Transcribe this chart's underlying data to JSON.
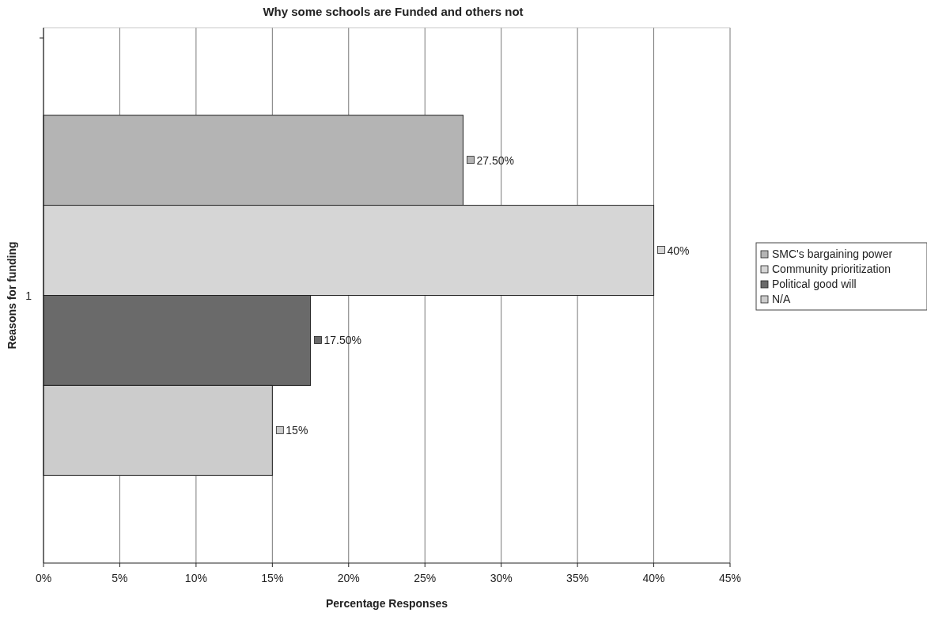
{
  "chart_data": {
    "type": "bar",
    "orientation": "horizontal",
    "title": "Why some schools are Funded and others not",
    "xlabel": "Percentage Responses",
    "ylabel": "Reasons for funding",
    "categories": [
      "1"
    ],
    "series": [
      {
        "name": "SMC's bargaining power",
        "color": "#b4b4b4",
        "values": [
          27.5
        ],
        "value_labels": [
          "27.50%"
        ]
      },
      {
        "name": "Community prioritization",
        "color": "#d6d6d6",
        "values": [
          40
        ],
        "value_labels": [
          "40%"
        ]
      },
      {
        "name": "Political good will",
        "color": "#6a6a6a",
        "values": [
          17.5
        ],
        "value_labels": [
          "17.50%"
        ]
      },
      {
        "name": "N/A",
        "color": "#cccccc",
        "values": [
          15
        ],
        "value_labels": [
          "15%"
        ]
      }
    ],
    "xlim": [
      0,
      45
    ],
    "xticks": [
      {
        "value": 0,
        "label": "0%"
      },
      {
        "value": 5,
        "label": "5%"
      },
      {
        "value": 10,
        "label": "10%"
      },
      {
        "value": 15,
        "label": "15%"
      },
      {
        "value": 20,
        "label": "20%"
      },
      {
        "value": 25,
        "label": "25%"
      },
      {
        "value": 30,
        "label": "30%"
      },
      {
        "value": 35,
        "label": "35%"
      },
      {
        "value": 40,
        "label": "40%"
      },
      {
        "value": 45,
        "label": "45%"
      }
    ],
    "grid": "x",
    "legend": "right"
  }
}
